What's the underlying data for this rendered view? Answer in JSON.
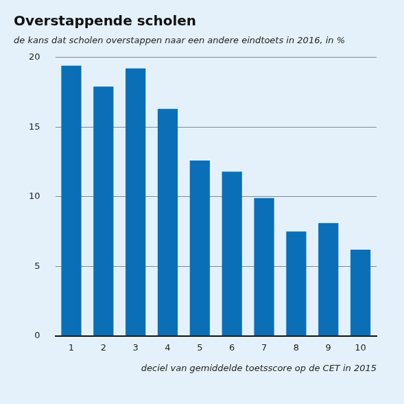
{
  "chart_data": {
    "type": "bar",
    "title": "Overstappende scholen",
    "subtitle": "de kans dat scholen overstappen naar een andere eindtoets in 2016, in %",
    "x_label": "deciel van gemiddelde toetsscore op de CET in 2015",
    "categories": [
      "1",
      "2",
      "3",
      "4",
      "5",
      "6",
      "7",
      "8",
      "9",
      "10"
    ],
    "values": [
      19.4,
      17.9,
      19.2,
      16.3,
      12.6,
      11.8,
      9.9,
      7.5,
      8.1,
      6.2
    ],
    "color": "#0a6fb7",
    "ylim": [
      0,
      20
    ],
    "yticks": [
      0,
      5,
      10,
      15,
      20
    ],
    "grid": true
  }
}
